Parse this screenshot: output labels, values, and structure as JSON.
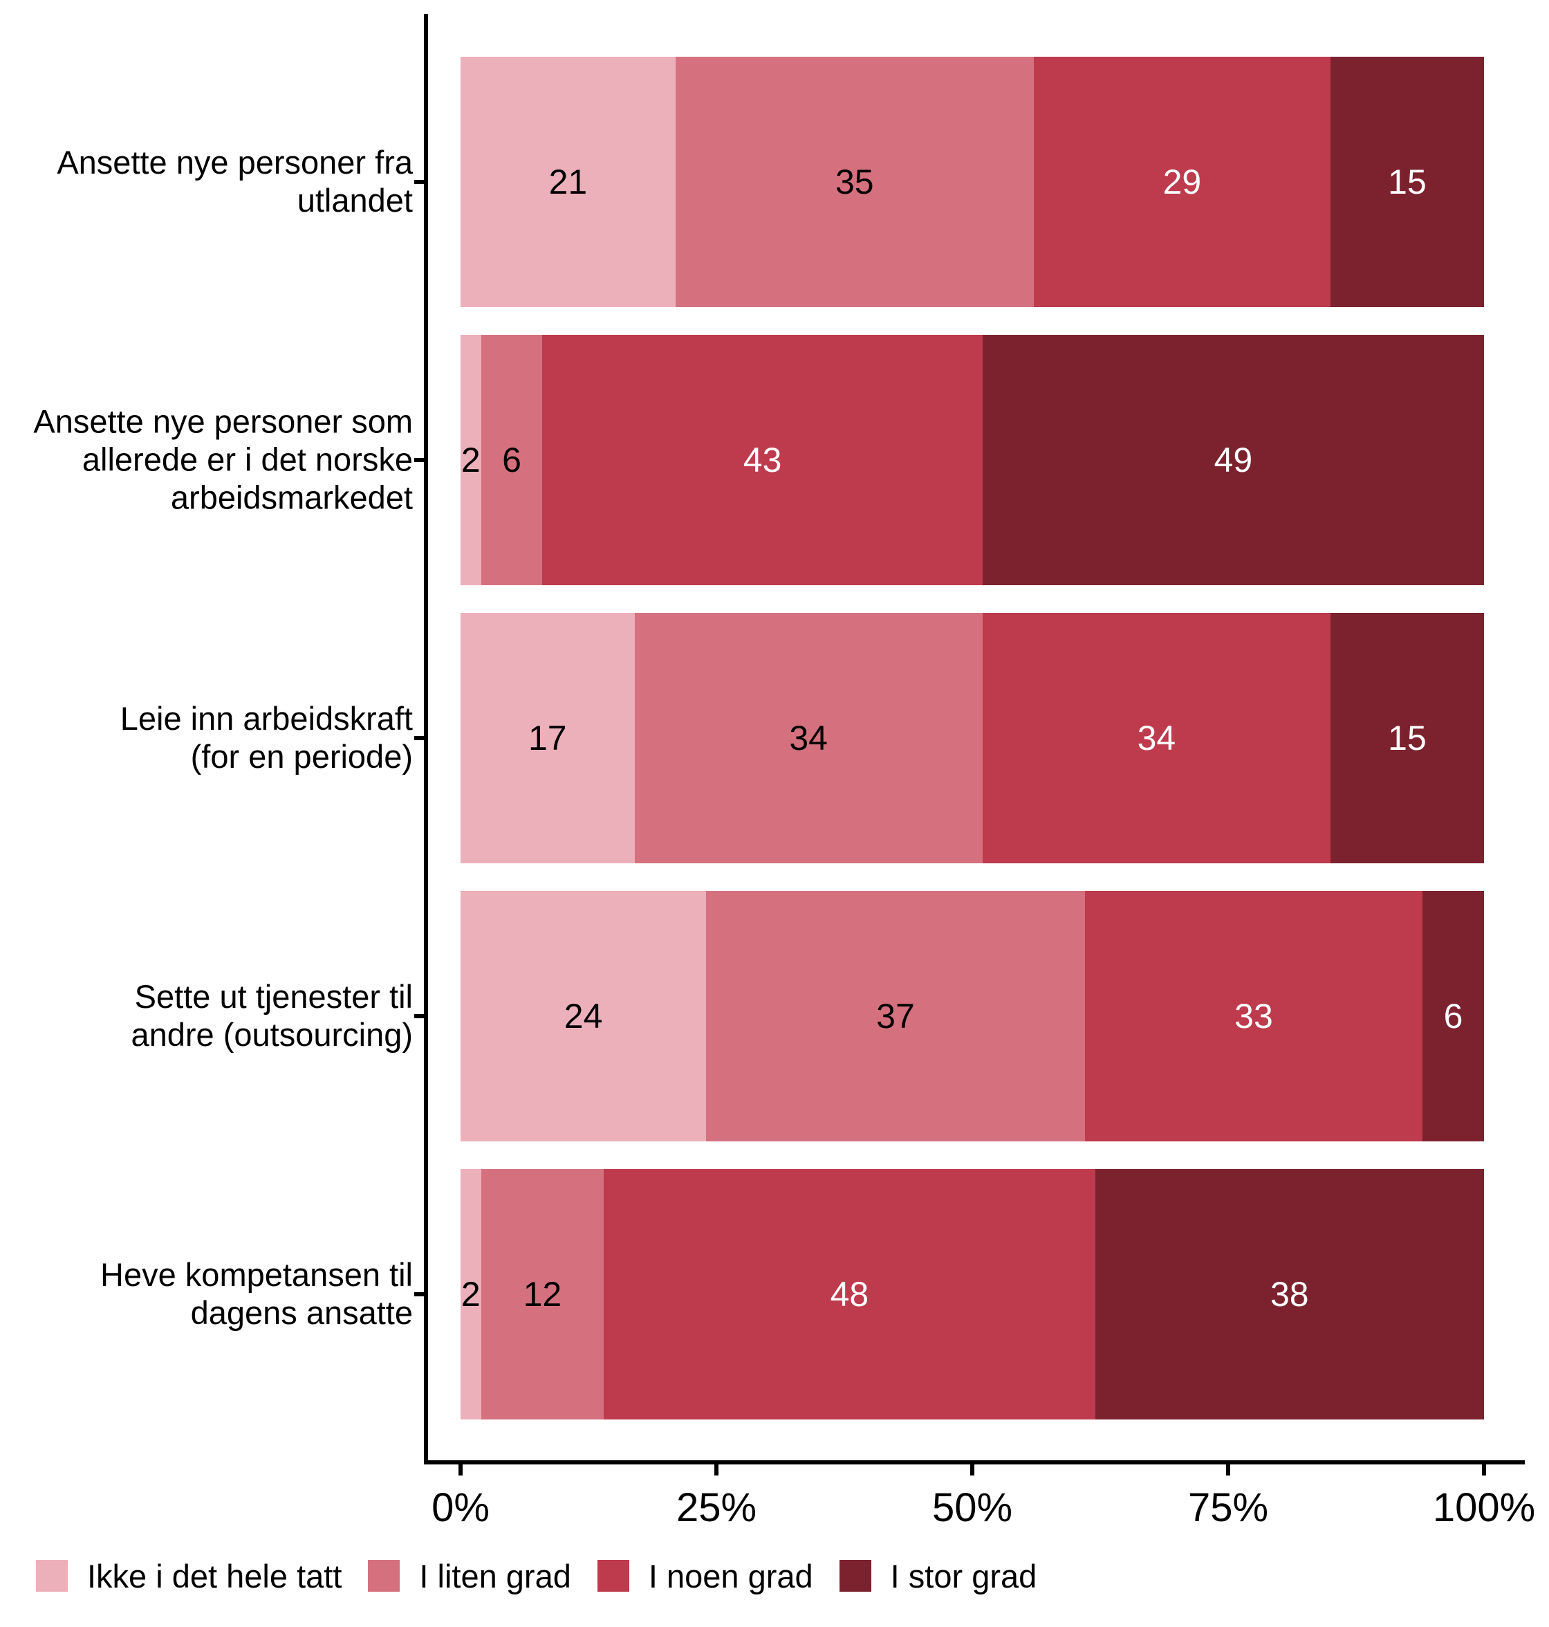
{
  "chart_data": {
    "type": "bar",
    "orientation": "horizontal",
    "stacked": true,
    "values_unit": "percent",
    "title": "",
    "xlabel": "",
    "ylabel": "",
    "xlim": [
      0,
      100
    ],
    "grid": false,
    "legend_position": "bottom",
    "categories": [
      [
        "Ansette nye personer fra",
        "utlandet"
      ],
      [
        "Ansette nye personer som",
        "allerede er i det norske",
        "arbeidsmarkedet"
      ],
      [
        "Leie inn arbeidskraft",
        "(for en periode)"
      ],
      [
        "Sette ut tjenester til",
        "andre (outsourcing)"
      ],
      [
        "Heve kompetansen til",
        "dagens ansatte"
      ]
    ],
    "series": [
      {
        "name": "Ikke i det hele tatt",
        "color": "#ECB0BA",
        "label_color": "#000000",
        "values": [
          21,
          2,
          17,
          24,
          2
        ]
      },
      {
        "name": "I liten grad",
        "color": "#D5717E",
        "label_color": "#000000",
        "values": [
          35,
          6,
          34,
          37,
          12
        ]
      },
      {
        "name": "I noen grad",
        "color": "#BE3A4D",
        "label_color": "#FFFFFF",
        "values": [
          29,
          43,
          34,
          33,
          48
        ]
      },
      {
        "name": "I stor grad",
        "color": "#7C222F",
        "label_color": "#FFFFFF",
        "values": [
          15,
          49,
          15,
          6,
          38
        ]
      }
    ],
    "x_ticks": [
      "0%",
      "25%",
      "50%",
      "75%",
      "100%"
    ]
  }
}
